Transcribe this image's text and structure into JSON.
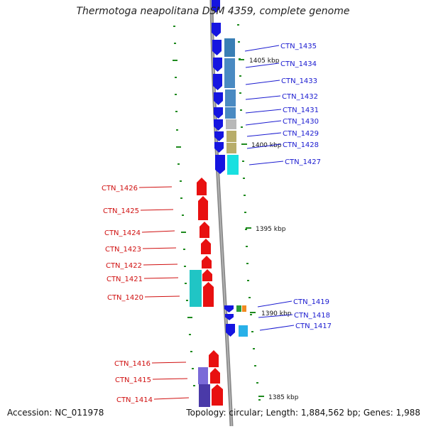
{
  "header": {
    "title": "Thermotoga neapolitana DSM 4359, complete genome"
  },
  "footer": {
    "accession": "Accession: NC_011978",
    "summary": "Topology: circular; Length: 1,884,562 bp; Genes: 1,988"
  },
  "colors": {
    "background": "#ffffff",
    "plus_strand_gene": "#1515e0",
    "minus_strand_gene": "#e81010",
    "plus_label": "#1a1ad0",
    "minus_label": "#d01010",
    "backbone": "#888888",
    "tick": "#1e8a1e"
  },
  "chart_data": {
    "type": "genome-map",
    "scale_labels": [
      {
        "text": "1405 kbp",
        "kbp": 1405
      },
      {
        "text": "1400 kbp",
        "kbp": 1400
      },
      {
        "text": "1395 kbp",
        "kbp": 1395
      },
      {
        "text": "1390 kbp",
        "kbp": 1390
      },
      {
        "text": "1385 kbp",
        "kbp": 1385
      }
    ],
    "plus_strand_genes": [
      "CTN_1435",
      "CTN_1434",
      "CTN_1433",
      "CTN_1432",
      "CTN_1431",
      "CTN_1430",
      "CTN_1429",
      "CTN_1428",
      "CTN_1427",
      "CTN_1419",
      "CTN_1418",
      "CTN_1417"
    ],
    "minus_strand_genes": [
      "CTN_1426",
      "CTN_1425",
      "CTN_1424",
      "CTN_1423",
      "CTN_1422",
      "CTN_1421",
      "CTN_1420",
      "CTN_1416",
      "CTN_1415",
      "CTN_1414"
    ]
  }
}
